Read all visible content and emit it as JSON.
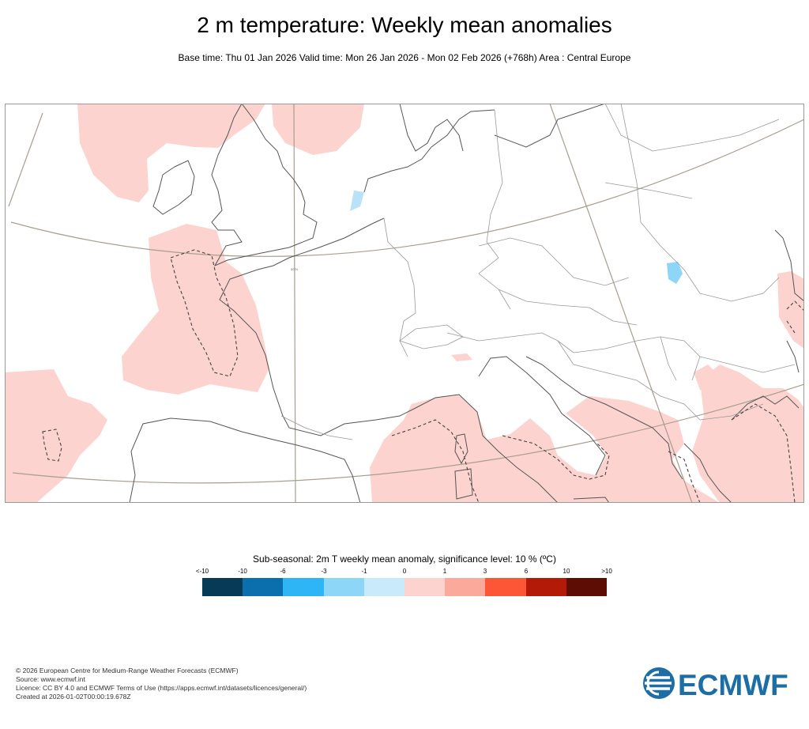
{
  "header": {
    "title": "2 m temperature: Weekly mean anomalies",
    "subtitle": "Base time: Thu 01 Jan 2026 Valid time: Mon 26 Jan 2026 - Mon 02 Feb 2026 (+768h) Area : Central Europe"
  },
  "map": {
    "graticule_label": "50°N",
    "region": "Central Europe"
  },
  "legend": {
    "title": "Sub-seasonal: 2m T weekly mean anomaly, significance level: 10 % (ºC)",
    "labels": [
      "<-10",
      "-10",
      "-6",
      "-3",
      "-1",
      "0",
      "1",
      "3",
      "6",
      "10",
      ">10"
    ],
    "colors": [
      "#073a55",
      "#0b6fad",
      "#2eb5f5",
      "#8ed6f8",
      "#c8eafb",
      "#fdd3cf",
      "#fba99a",
      "#fc5636",
      "#b31a08",
      "#5e0d04"
    ]
  },
  "footer": {
    "line1": "© 2026 European Centre for Medium-Range Weather Forecasts (ECMWF)",
    "line2": "Source: www.ecmwf.int",
    "line3": "Licence: CC BY 4.0 and ECMWF Terms of Use (https://apps.ecmwf.int/datasets/licences/general/)",
    "line4": "Created at 2026-01-02T00:00:19.678Z"
  },
  "logo": {
    "text": "ECMWF",
    "color": "#1d6ea6"
  }
}
